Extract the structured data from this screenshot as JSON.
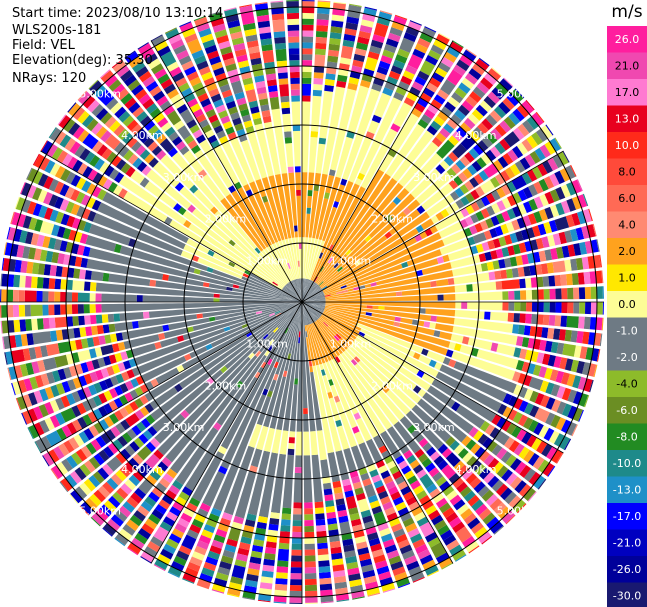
{
  "header": {
    "start_time": "Start time: 2023/08/10 13:10:14",
    "instrument": "WLS200s-181",
    "field": "Field: VEL",
    "elevation": "Elevation(deg): 35.30",
    "nrays": "NRays: 120"
  },
  "chart_data": {
    "type": "heatmap",
    "projection": "polar-ppi",
    "field": "VEL",
    "units": "m/s",
    "nrays": 120,
    "range_rings_km": [
      1.0,
      2.0,
      3.0,
      4.0,
      5.0
    ],
    "range_ring_labels": [
      "1.00km",
      "2.00km",
      "3.00km",
      "4.00km",
      "5.00km"
    ],
    "spokes": 12,
    "approximate_pattern": [
      {
        "region": "center ring (< 0.5 km)",
        "velocity_ms": -1.0
      },
      {
        "region": "inner north-east to south-east arc",
        "velocity_ms": 2.0
      },
      {
        "region": "inner west to south",
        "velocity_ms": -2.0
      },
      {
        "region": "east / south-east sector, 0.5-3 km",
        "velocity_ms": 0.0
      },
      {
        "region": "north sector, 1.2-2.2 km",
        "velocity_ms": 2.0
      },
      {
        "region": "beyond ~3.5 km",
        "velocity_ms": "noise (full color range)"
      }
    ],
    "colorbar": {
      "title": "m/s",
      "tick_labels": [
        "26.0",
        "21.0",
        "17.0",
        "13.0",
        "10.0",
        "8.0",
        "6.0",
        "4.0",
        "2.0",
        "1.0",
        "0.0",
        "-1.0",
        "-2.0",
        "-4.0",
        "-6.0",
        "-8.0",
        "-10.0",
        "-13.0",
        "-17.0",
        "-21.0",
        "-26.0",
        "-30.0"
      ],
      "colors": [
        "#ff1e9e",
        "#f048b0",
        "#ff7ad1",
        "#e8001e",
        "#ff2a1a",
        "#ff4a3a",
        "#ff6a55",
        "#ff8a72",
        "#ffa21e",
        "#ffe800",
        "#fdfd96",
        "#6e7a84",
        "#6e7a84",
        "#8dbb2a",
        "#6b8e23",
        "#228b22",
        "#1e8a8a",
        "#1e90c8",
        "#0000ff",
        "#0000c0",
        "#00009a",
        "#191970"
      ]
    }
  }
}
